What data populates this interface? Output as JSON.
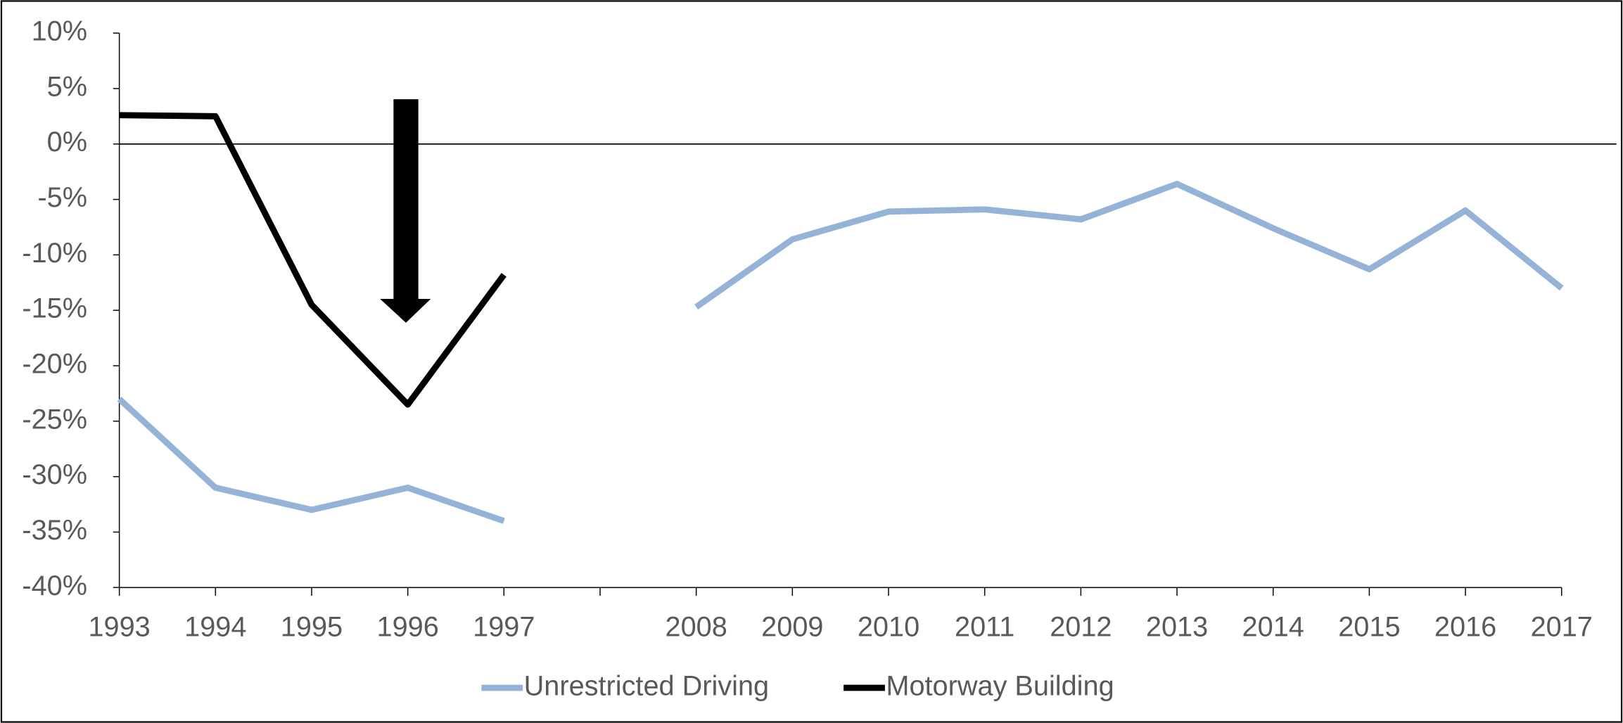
{
  "chart_data": {
    "type": "line",
    "categories": [
      "1993",
      "1994",
      "1995",
      "1996",
      "1997",
      null,
      "2008",
      "2009",
      "2010",
      "2011",
      "2012",
      "2013",
      "2014",
      "2015",
      "2016",
      "2017"
    ],
    "series": [
      {
        "name": "Unrestricted Driving",
        "color": "#95b3d7",
        "values": [
          -23,
          -31,
          -33,
          -31,
          -34,
          null,
          -14.7,
          -8.6,
          -6.1,
          -5.9,
          -6.8,
          -3.6,
          -7.6,
          -11.3,
          -6.0,
          -13.0
        ]
      },
      {
        "name": "Motorway Building",
        "color": "#000000",
        "values": [
          2.6,
          2.5,
          -14.5,
          -23.5,
          -11.8,
          null,
          null,
          null,
          null,
          null,
          null,
          null,
          null,
          null,
          null,
          null
        ]
      }
    ],
    "ylim": [
      -40,
      10
    ],
    "yticks": [
      {
        "value": -40,
        "label": "-40%"
      },
      {
        "value": -35,
        "label": "-35%"
      },
      {
        "value": -30,
        "label": "-30%"
      },
      {
        "value": -25,
        "label": "-25%"
      },
      {
        "value": -20,
        "label": "-20%"
      },
      {
        "value": -15,
        "label": "-15%"
      },
      {
        "value": -10,
        "label": "-10%"
      },
      {
        "value": -5,
        "label": "-5%"
      },
      {
        "value": 0,
        "label": "0%"
      },
      {
        "value": 5,
        "label": "5%"
      },
      {
        "value": 10,
        "label": "10%"
      }
    ],
    "legend": "bottom"
  }
}
